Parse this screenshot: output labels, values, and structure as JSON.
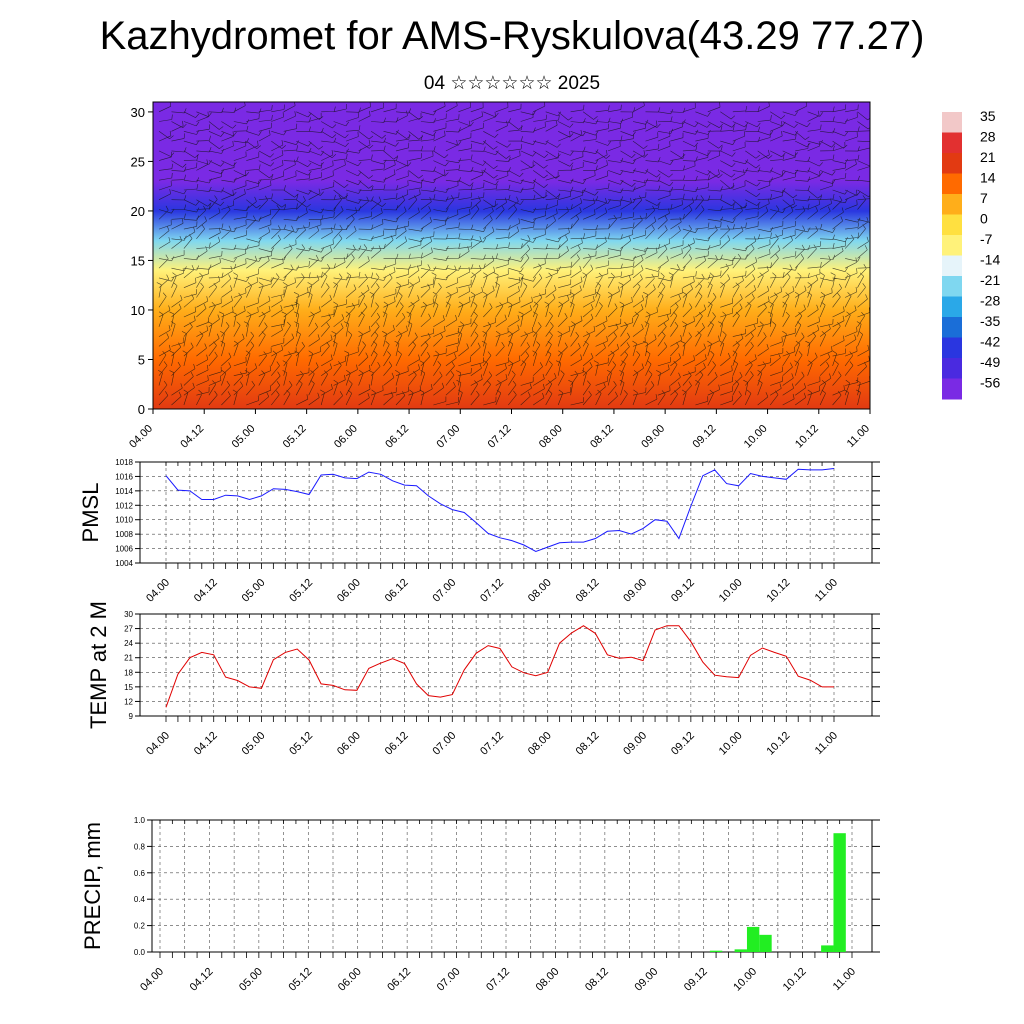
{
  "header": {
    "title": "Kazhydromet for AMS-Ryskulova(43.29 77.27)",
    "subtitle": "04 ☆☆☆☆☆☆ 2025"
  },
  "chart_data": [
    {
      "type": "heatmap",
      "name": "cross-section",
      "yticks": [
        0,
        5,
        10,
        15,
        20,
        25,
        30
      ],
      "ylim": [
        0,
        31
      ],
      "xticks": [
        "04.00",
        "04.12",
        "05.00",
        "05.12",
        "06.00",
        "06.12",
        "07.00",
        "07.12",
        "08.00",
        "08.12",
        "09.00",
        "09.12",
        "10.00",
        "10.12",
        "11.00"
      ],
      "colorbar": {
        "labels": [
          "35",
          "28",
          "21",
          "14",
          "7",
          "0",
          "-7",
          "-14",
          "-21",
          "-28",
          "-35",
          "-42",
          "-49",
          "-56"
        ],
        "colors": [
          "#f2c8c8",
          "#e23030",
          "#e23a12",
          "#ff6a00",
          "#ffae1a",
          "#ffe040",
          "#fff27a",
          "#e6f4fa",
          "#7fd7f0",
          "#2aa8e8",
          "#1a6ed8",
          "#2a36e0",
          "#4a2ae0",
          "#7a2ae4"
        ]
      },
      "temperature_bands": [
        {
          "height": 0,
          "value": 21
        },
        {
          "height": 5,
          "value": 14
        },
        {
          "height": 10,
          "value": 4
        },
        {
          "height": 14,
          "value": -7
        },
        {
          "height": 17,
          "value": -21
        },
        {
          "height": 20,
          "value": -42
        },
        {
          "height": 23,
          "value": -56
        },
        {
          "height": 31,
          "value": -56
        }
      ]
    },
    {
      "type": "line",
      "name": "pmsl",
      "ylabel": "PMSL",
      "ylim": [
        1004,
        1018
      ],
      "yticks": [
        1004,
        1006,
        1008,
        1010,
        1012,
        1014,
        1016,
        1018
      ],
      "xticks": [
        "04.00",
        "04.12",
        "05.00",
        "05.12",
        "06.00",
        "06.12",
        "07.00",
        "07.12",
        "08.00",
        "08.12",
        "09.00",
        "09.12",
        "10.00",
        "10.12",
        "11.00"
      ],
      "color": "#1a1aff",
      "values": [
        1016.1,
        1014.1,
        1014.0,
        1012.8,
        1012.8,
        1013.4,
        1013.3,
        1012.8,
        1013.3,
        1014.3,
        1014.2,
        1013.9,
        1013.5,
        1016.2,
        1016.3,
        1015.8,
        1015.7,
        1016.6,
        1016.3,
        1015.4,
        1014.8,
        1014.7,
        1013.3,
        1012.2,
        1011.4,
        1011.0,
        1009.6,
        1008.1,
        1007.5,
        1007.1,
        1006.5,
        1005.6,
        1006.2,
        1006.8,
        1006.9,
        1006.9,
        1007.4,
        1008.4,
        1008.5,
        1008.0,
        1008.8,
        1010.0,
        1009.8,
        1007.4,
        1011.9,
        1016.1,
        1016.9,
        1015.0,
        1014.7,
        1016.4,
        1016.0,
        1015.8,
        1015.6,
        1017.0,
        1016.9,
        1016.9,
        1017.1
      ]
    },
    {
      "type": "line",
      "name": "temp2m",
      "ylabel": "TEMP at 2 M",
      "ylim": [
        9,
        30
      ],
      "yticks": [
        9,
        12,
        15,
        18,
        21,
        24,
        27,
        30
      ],
      "xticks": [
        "04.00",
        "04.12",
        "05.00",
        "05.12",
        "06.00",
        "06.12",
        "07.00",
        "07.12",
        "08.00",
        "08.12",
        "09.00",
        "09.12",
        "10.00",
        "10.12",
        "11.00"
      ],
      "color": "#e00000",
      "values": [
        10.8,
        17.6,
        21.0,
        22.1,
        21.6,
        17.0,
        16.3,
        15.0,
        14.7,
        20.6,
        22.1,
        22.8,
        20.5,
        15.6,
        15.3,
        14.4,
        14.3,
        18.8,
        19.9,
        20.8,
        19.8,
        15.6,
        13.2,
        12.9,
        13.4,
        18.5,
        21.9,
        23.5,
        22.9,
        19.1,
        17.9,
        17.3,
        18.0,
        24.0,
        26.1,
        27.6,
        26.0,
        21.6,
        20.9,
        21.1,
        20.4,
        26.7,
        27.6,
        27.6,
        24.3,
        20.1,
        17.4,
        17.1,
        16.9,
        21.5,
        23.0,
        22.1,
        21.3,
        17.2,
        16.4,
        15.0,
        15.0
      ]
    },
    {
      "type": "bar",
      "name": "precip",
      "ylabel": "PRECIP, mm",
      "ylim": [
        0,
        1.0
      ],
      "yticks": [
        "0.0",
        "0.2",
        "0.4",
        "0.6",
        "0.8",
        "1.0"
      ],
      "xticks": [
        "04.00",
        "04.12",
        "05.00",
        "05.12",
        "06.00",
        "06.12",
        "07.00",
        "07.12",
        "08.00",
        "08.12",
        "09.00",
        "09.12",
        "10.00",
        "10.12",
        "11.00"
      ],
      "color": "#22ee22",
      "values": [
        0,
        0,
        0,
        0,
        0,
        0,
        0,
        0,
        0,
        0,
        0,
        0,
        0,
        0,
        0,
        0,
        0,
        0,
        0,
        0,
        0,
        0,
        0,
        0,
        0,
        0,
        0,
        0,
        0,
        0,
        0,
        0,
        0,
        0,
        0,
        0,
        0,
        0,
        0,
        0,
        0,
        0,
        0,
        0,
        0,
        0.01,
        0,
        0.02,
        0.19,
        0.13,
        0,
        0,
        0,
        0,
        0.05,
        0.9
      ]
    }
  ]
}
